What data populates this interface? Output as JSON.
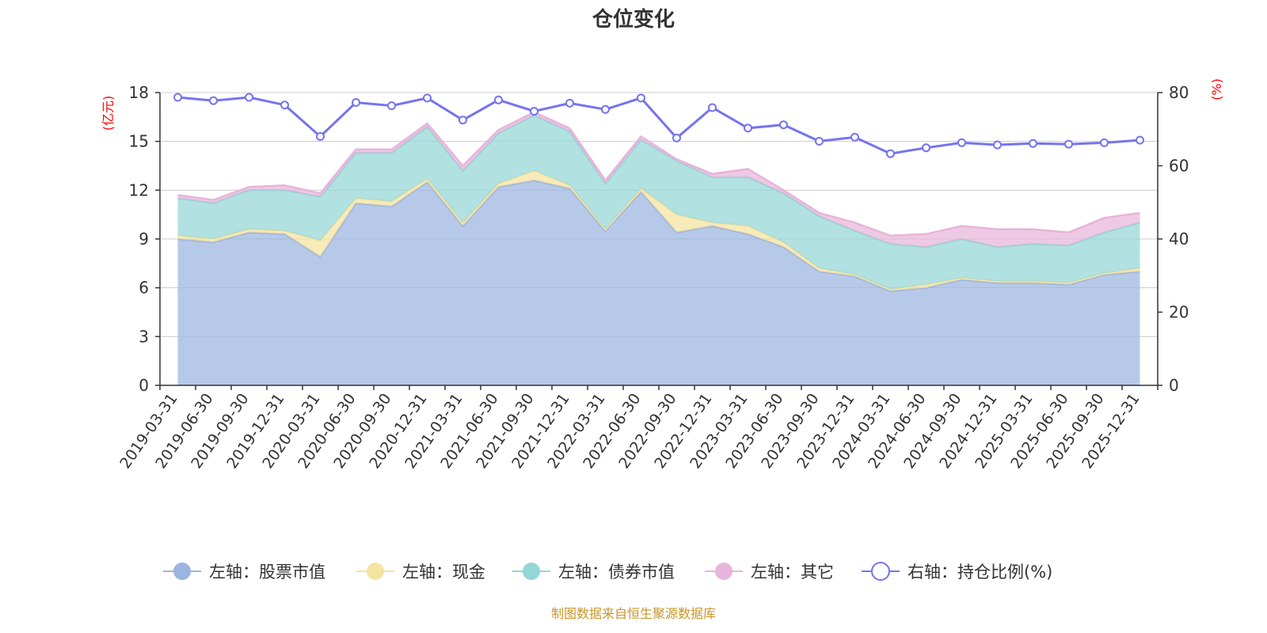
{
  "title": "仓位变化",
  "source": "制图数据来自恒生聚源数据库",
  "colors": {
    "stock": "#9bb4e0",
    "cash": "#f5e3a0",
    "bond": "#94d6d6",
    "other": "#e8b4da",
    "ratio": "#7474f0",
    "grid": "#cccccc",
    "axis": "#333333",
    "unit": "#ff0000"
  },
  "chart_data": {
    "type": "area",
    "stacked": true,
    "title": "仓位变化",
    "left_axis_unit": "(亿元)",
    "right_axis_unit": "(%)",
    "y_left": {
      "min": 0,
      "max": 18,
      "ticks": [
        "0",
        "3",
        "6",
        "9",
        "12",
        "15",
        "18"
      ]
    },
    "y_right": {
      "min": 0,
      "max": 80,
      "ticks": [
        "0",
        "20",
        "40",
        "60",
        "80"
      ]
    },
    "categories": [
      "2019-03-31",
      "2019-06-30",
      "2019-09-30",
      "2019-12-31",
      "2020-03-31",
      "2020-06-30",
      "2020-09-30",
      "2020-12-31",
      "2021-03-31",
      "2021-06-30",
      "2021-09-30",
      "2021-12-31",
      "2022-03-31",
      "2022-06-30",
      "2022-09-30",
      "2022-12-31",
      "2023-03-31",
      "2023-06-30",
      "2023-09-30",
      "2023-12-31",
      "2024-03-31",
      "2024-06-30",
      "2024-09-30",
      "2024-12-31",
      "2025-03-31",
      "2025-06-30",
      "2025-09-30",
      "2025-12-31"
    ],
    "series": [
      {
        "name": "左轴：股票市值",
        "key": "stock",
        "axis": "left",
        "type": "area",
        "values": [
          9.0,
          8.8,
          9.4,
          9.3,
          7.9,
          11.2,
          11.0,
          12.5,
          9.8,
          12.2,
          12.6,
          12.1,
          9.5,
          11.9,
          9.4,
          9.8,
          9.3,
          8.5,
          7.0,
          6.7,
          5.8,
          6.0,
          6.5,
          6.3,
          6.3,
          6.2,
          6.8,
          7.0
        ]
      },
      {
        "name": "左轴：现金",
        "key": "cash",
        "axis": "left",
        "type": "area",
        "values": [
          0.2,
          0.2,
          0.2,
          0.2,
          1.0,
          0.3,
          0.3,
          0.2,
          0.2,
          0.2,
          0.6,
          0.2,
          0.1,
          0.2,
          1.1,
          0.2,
          0.5,
          0.3,
          0.2,
          0.1,
          0.1,
          0.2,
          0.1,
          0.1,
          0.1,
          0.1,
          0.1,
          0.2
        ]
      },
      {
        "name": "左轴：债券市值",
        "key": "bond",
        "axis": "left",
        "type": "area",
        "values": [
          2.3,
          2.2,
          2.4,
          2.5,
          2.7,
          2.8,
          3.0,
          3.2,
          3.2,
          3.1,
          3.4,
          3.3,
          2.8,
          3.0,
          3.3,
          2.8,
          3.0,
          3.0,
          3.2,
          2.7,
          2.8,
          2.3,
          2.4,
          2.1,
          2.3,
          2.3,
          2.5,
          2.8
        ]
      },
      {
        "name": "左轴：其它",
        "key": "other",
        "axis": "left",
        "type": "area",
        "values": [
          0.2,
          0.2,
          0.2,
          0.3,
          0.2,
          0.2,
          0.2,
          0.2,
          0.3,
          0.2,
          0.2,
          0.2,
          0.2,
          0.2,
          0.1,
          0.2,
          0.5,
          0.2,
          0.2,
          0.5,
          0.5,
          0.8,
          0.8,
          1.1,
          0.9,
          0.8,
          0.9,
          0.6
        ]
      },
      {
        "name": "右轴：持仓比例(%)",
        "key": "ratio",
        "axis": "right",
        "type": "line",
        "values": [
          78.7,
          77.8,
          78.7,
          76.6,
          68.0,
          77.3,
          76.4,
          78.5,
          72.5,
          78.0,
          74.9,
          77.1,
          75.4,
          78.5,
          67.6,
          75.9,
          70.3,
          71.2,
          66.7,
          67.8,
          63.3,
          64.9,
          66.3,
          65.7,
          66.1,
          65.9,
          66.3,
          67.0
        ]
      }
    ]
  }
}
